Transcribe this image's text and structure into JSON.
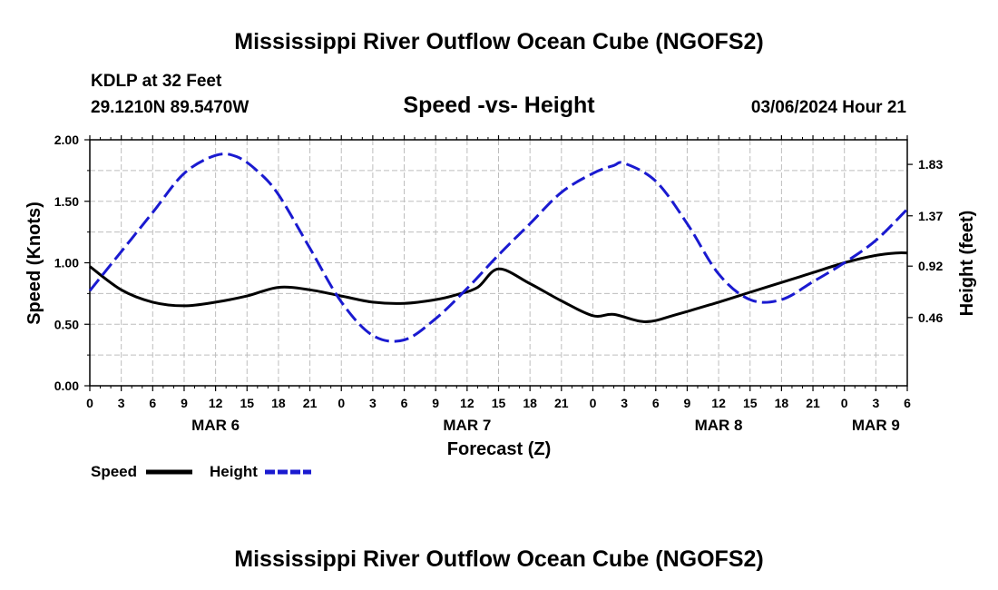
{
  "colors": {
    "speed": "#000000",
    "height": "#1a1ad0",
    "grid": "#bdbdbd"
  },
  "header": {
    "title": "Mississippi River Outflow Ocean Cube (NGOFS2)",
    "station": "KDLP at 32 Feet",
    "coords": "29.1210N  89.5470W",
    "plot_title": "Speed -vs- Height",
    "datetime": "03/06/2024 Hour 21"
  },
  "footer": {
    "title": "Mississippi River Outflow Ocean Cube (NGOFS2)"
  },
  "legend": {
    "speed_label": "Speed",
    "height_label": "Height"
  },
  "chart_data": {
    "type": "line",
    "title": "Speed -vs- Height",
    "xlabel": "Forecast (Z)",
    "ylabel": "Speed (Knots)",
    "ylabel_right": "Height (feet)",
    "x_range": [
      0,
      78
    ],
    "x_ticks": [
      0,
      3,
      6,
      9,
      12,
      15,
      18,
      21,
      24,
      27,
      30,
      33,
      36,
      39,
      42,
      45,
      48,
      51,
      54,
      57,
      60,
      63,
      66,
      69,
      72,
      75,
      78
    ],
    "x_tick_labels": [
      "0",
      "3",
      "6",
      "9",
      "12",
      "15",
      "18",
      "21",
      "0",
      "3",
      "6",
      "9",
      "12",
      "15",
      "18",
      "21",
      "0",
      "3",
      "6",
      "9",
      "12",
      "15",
      "18",
      "21",
      "0",
      "3",
      "6"
    ],
    "date_labels": [
      {
        "x": 12,
        "label": "MAR 6"
      },
      {
        "x": 36,
        "label": "MAR 7"
      },
      {
        "x": 60,
        "label": "MAR 8"
      },
      {
        "x": 75,
        "label": "MAR 9"
      }
    ],
    "y_left": {
      "range": [
        0,
        2.0
      ],
      "ticks": [
        0,
        0.5,
        1.0,
        1.5,
        2.0
      ],
      "tick_labels": [
        "0.00",
        "0.50",
        "1.00",
        "1.50",
        "2.00"
      ]
    },
    "y_right": {
      "range": [
        -0.15,
        2.05
      ],
      "ticks": [
        0.46,
        0.92,
        1.37,
        1.83
      ],
      "tick_labels": [
        "0.46",
        "0.92",
        "1.37",
        "1.83"
      ]
    },
    "grid": true,
    "legend_position": "bottom-left",
    "series": [
      {
        "name": "Speed",
        "axis": "left",
        "style": "solid",
        "x": [
          0,
          3,
          6,
          9,
          12,
          15,
          18,
          21,
          24,
          27,
          30,
          33,
          35,
          37,
          39,
          42,
          45,
          48,
          50,
          53,
          56,
          60,
          63,
          66,
          69,
          72,
          75,
          77,
          78
        ],
        "values": [
          0.97,
          0.78,
          0.68,
          0.65,
          0.68,
          0.73,
          0.8,
          0.78,
          0.73,
          0.68,
          0.67,
          0.7,
          0.74,
          0.8,
          0.95,
          0.83,
          0.69,
          0.57,
          0.58,
          0.52,
          0.58,
          0.68,
          0.76,
          0.84,
          0.92,
          1.0,
          1.06,
          1.08,
          1.08
        ]
      },
      {
        "name": "Height",
        "axis": "right",
        "style": "dashed",
        "x": [
          0,
          3,
          6,
          9,
          12,
          14,
          16,
          18,
          21,
          24,
          27,
          30,
          33,
          36,
          39,
          42,
          45,
          48,
          50,
          51,
          54,
          57,
          60,
          63,
          66,
          69,
          72,
          75,
          78
        ],
        "values": [
          0.7,
          1.05,
          1.4,
          1.75,
          1.91,
          1.9,
          1.77,
          1.56,
          1.08,
          0.6,
          0.3,
          0.26,
          0.45,
          0.72,
          1.02,
          1.3,
          1.58,
          1.75,
          1.82,
          1.84,
          1.68,
          1.3,
          0.85,
          0.62,
          0.62,
          0.78,
          0.95,
          1.15,
          1.43
        ]
      }
    ]
  }
}
